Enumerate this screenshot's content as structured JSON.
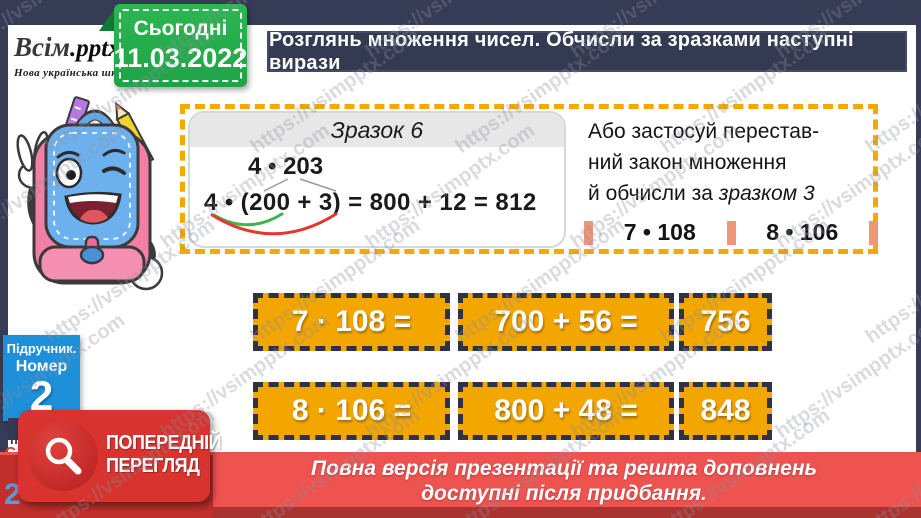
{
  "watermark": {
    "text": "https://vsimpptx.com"
  },
  "branding": {
    "logo_main": "Всім",
    "logo_ext": ".pptx",
    "logo_subtitle": "Нова українська школа"
  },
  "date_ribbon": {
    "label": "Сьогодні",
    "date": "11.03.2022",
    "color": "#27b44c"
  },
  "header": {
    "title": "Розглянь множення чисел. Обчисли за зразками наступні вирази"
  },
  "sample_box": {
    "title": "Зразок 6",
    "expression_top": "4 • 203",
    "expression_main": "4 • (200 + 3) = 800 + 12 = 812",
    "arc_green": "#3cb54a",
    "arc_red": "#e8352e"
  },
  "side_note": {
    "line1": "Або застосуй перестав-",
    "line2": "ний закон множення",
    "line3_normal": "й обчисли за ",
    "line3_italic": "зразком 3",
    "expr1": "7 • 108",
    "expr2": "8 • 106",
    "marker_color": "#f09579"
  },
  "answers": {
    "button_color": "#f3a600",
    "rows": [
      {
        "factor": "7 · 108 =",
        "expansion": "700 + 56 =",
        "result": "756"
      },
      {
        "factor": "8 · 106 =",
        "expansion": "800 + 48 =",
        "result": "848"
      }
    ]
  },
  "textbook_badge": {
    "line1": "Підручник.",
    "line2": "Номер",
    "number": "2"
  },
  "fragments": {
    "letter_p": "п",
    "letter_c": "С",
    "number": "2"
  },
  "preview_badge": {
    "line1": "ПОПЕРЕДНІЙ",
    "line2": "ПЕРЕГЛЯД"
  },
  "footer": {
    "line1": "Повна версія презентації та решта доповнень",
    "line2": "доступні після придбання."
  }
}
